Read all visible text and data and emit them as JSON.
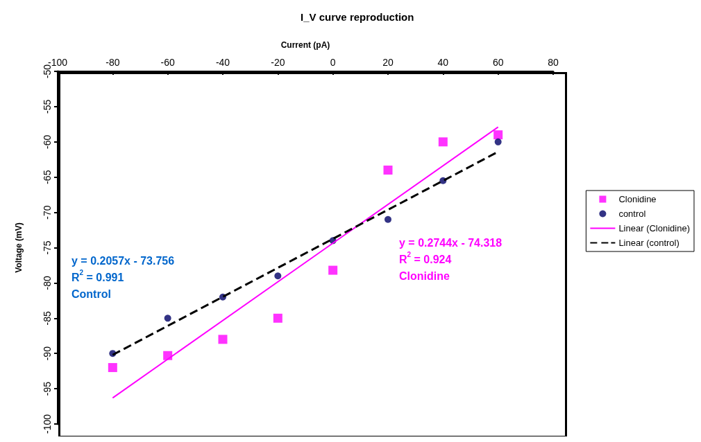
{
  "chart_data": {
    "type": "scatter",
    "title": "I_V curve reproduction",
    "xlabel": "Current (pA)",
    "ylabel": "Voltage (mV)",
    "xlim": [
      -100,
      80
    ],
    "xticks": [
      -100,
      -80,
      -60,
      -40,
      -20,
      0,
      20,
      40,
      60,
      80
    ],
    "ylim": [
      -100,
      -50
    ],
    "yticks": [
      -100,
      -95,
      -90,
      -85,
      -80,
      -75,
      -70,
      -65,
      -60,
      -55,
      -50
    ],
    "grid": false,
    "legend": "right",
    "series": [
      {
        "name": "Clonidine",
        "marker": "square",
        "color": "#ff00ff",
        "x": [
          -80,
          -60,
          -40,
          -20,
          0,
          20,
          40,
          60
        ],
        "values": [
          -92,
          -90.3,
          -88,
          -85,
          -78.2,
          -64,
          -60,
          -59
        ]
      },
      {
        "name": "control",
        "marker": "circle",
        "color": "#000066",
        "x": [
          -80,
          -60,
          -40,
          -20,
          0,
          20,
          40,
          60
        ],
        "values": [
          -90,
          -85,
          -82,
          -79,
          -74,
          -71,
          -65.5,
          -60
        ]
      },
      {
        "name": "Linear (Clonidine)",
        "type": "line",
        "line_style": "solid",
        "color": "#ff00ff",
        "x": [
          -80,
          60
        ],
        "values": [
          -96.3,
          -57.9
        ]
      },
      {
        "name": "Linear (control)",
        "type": "line",
        "line_style": "dashed",
        "color": "#000000",
        "x": [
          -80,
          60
        ],
        "values": [
          -90.2,
          -61.4
        ]
      }
    ],
    "annotations": [
      "y = 0.2057x - 73.756\nR$^{2}$ = 0.991\nControl",
      "y = 0.2744x - 74.318\nR$^{2}$ = 0.924\nClonidine"
    ]
  }
}
